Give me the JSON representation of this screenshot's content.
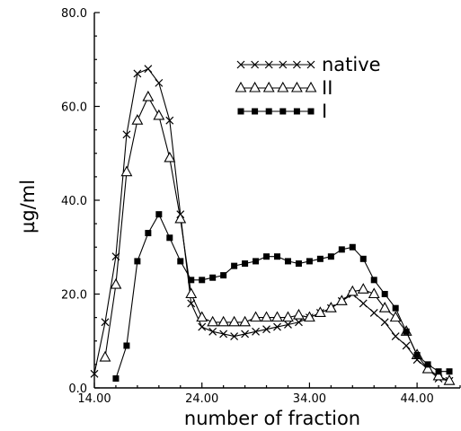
{
  "chart_data": {
    "type": "line",
    "xlabel": "number of fraction",
    "ylabel": "µg/ml",
    "xlim": [
      14,
      48
    ],
    "ylim": [
      0,
      80
    ],
    "x_ticks": [
      "14.00",
      "24.00",
      "34.00",
      "44.00"
    ],
    "y_ticks": [
      "0.0",
      "20.0",
      "40.0",
      "60.0",
      "80.0"
    ],
    "legend_position": "top-right",
    "grid": false,
    "series": [
      {
        "name": "native",
        "marker": "x",
        "x": [
          14,
          15,
          16,
          17,
          18,
          19,
          20,
          21,
          22,
          23,
          24,
          25,
          26,
          27,
          28,
          29,
          30,
          31,
          32,
          33,
          34,
          35,
          36,
          37,
          38,
          39,
          40,
          41,
          42,
          43,
          44,
          45,
          46,
          47
        ],
        "y": [
          3,
          14,
          28,
          54,
          67,
          68,
          65,
          57,
          37,
          18,
          13,
          12,
          11.5,
          11,
          11.5,
          12,
          12.5,
          13,
          13.5,
          14,
          15,
          16,
          17,
          18.5,
          20,
          18,
          16,
          14,
          11,
          9,
          6,
          4,
          2,
          1.5
        ]
      },
      {
        "name": "II",
        "marker": "triangle",
        "x": [
          15,
          16,
          17,
          18,
          19,
          20,
          21,
          22,
          23,
          24,
          25,
          26,
          27,
          28,
          29,
          30,
          31,
          32,
          33,
          34,
          35,
          36,
          37,
          38,
          39,
          40,
          41,
          42,
          43,
          44,
          45,
          46,
          47
        ],
        "y": [
          6.5,
          22,
          46,
          57,
          62,
          58,
          49,
          36,
          20,
          15,
          14,
          14,
          14,
          14,
          15,
          15,
          15,
          15,
          15.5,
          15,
          16,
          17,
          18.5,
          20.5,
          21,
          20,
          17,
          15,
          12,
          7,
          4,
          2.5,
          1.5
        ]
      },
      {
        "name": "I",
        "marker": "square",
        "x": [
          16,
          17,
          18,
          19,
          20,
          21,
          22,
          23,
          24,
          25,
          26,
          27,
          28,
          29,
          30,
          31,
          32,
          33,
          34,
          35,
          36,
          37,
          38,
          39,
          40,
          41,
          42,
          43,
          44,
          45,
          46,
          47
        ],
        "y": [
          2,
          9,
          27,
          33,
          37,
          32,
          27,
          23,
          23,
          23.5,
          24,
          26,
          26.5,
          27,
          28,
          28,
          27,
          26.5,
          27,
          27.5,
          28,
          29.5,
          30,
          27.5,
          23,
          20,
          17,
          12,
          7,
          5,
          3.5,
          3.5
        ]
      }
    ]
  }
}
